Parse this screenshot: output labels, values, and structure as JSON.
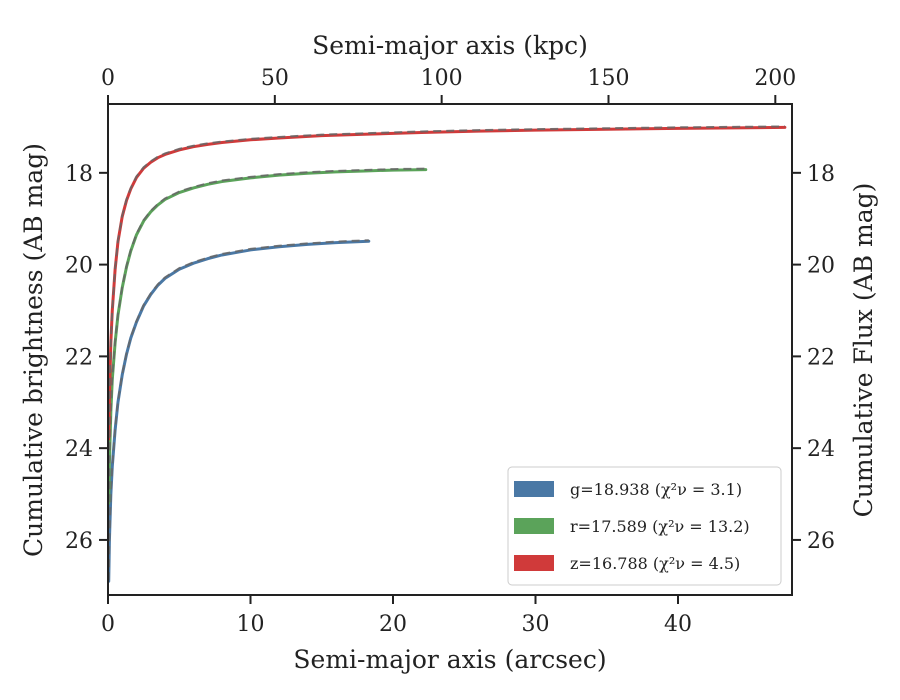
{
  "chart_data": {
    "type": "line",
    "xlabel": "Semi-major axis (arcsec)",
    "ylabel": "Cumulative brightness (AB mag)",
    "x2label": "Semi-major axis (kpc)",
    "y2label": "Cumulative Flux (AB mag)",
    "xlim": [
      0,
      48
    ],
    "ylim": [
      27.2,
      16.5
    ],
    "x2lim": [
      0,
      205
    ],
    "y_inverted": true,
    "grid": false,
    "legend_position": "lower-right",
    "xticks": [
      "0",
      "10",
      "20",
      "30",
      "40"
    ],
    "yticks": [
      "18",
      "20",
      "22",
      "24",
      "26"
    ],
    "x2ticks": [
      "0",
      "50",
      "100",
      "150",
      "200"
    ],
    "y2ticks": [
      "18",
      "20",
      "22",
      "24",
      "26"
    ],
    "series": [
      {
        "label": "g=18.938 (χ²ν = 3.1)",
        "band": "g",
        "color": "#4a78a5",
        "x": [
          0.05,
          0.1,
          0.2,
          0.3,
          0.5,
          0.7,
          1.0,
          1.3,
          1.6,
          2.0,
          2.5,
          3.0,
          3.5,
          4.0,
          5.0,
          6.0,
          7.0,
          8.0,
          10.0,
          12.0,
          14.0,
          16.0,
          18.3
        ],
        "values": [
          26.9,
          26.0,
          25.0,
          24.4,
          23.6,
          23.0,
          22.4,
          21.95,
          21.6,
          21.25,
          20.9,
          20.65,
          20.45,
          20.3,
          20.1,
          19.97,
          19.87,
          19.79,
          19.68,
          19.61,
          19.56,
          19.52,
          19.49
        ],
        "model_dashed": true
      },
      {
        "label": "r=17.589 (χ²ν = 13.2)",
        "band": "r",
        "color": "#5ba35a",
        "x": [
          0.05,
          0.1,
          0.2,
          0.3,
          0.5,
          0.7,
          1.0,
          1.3,
          1.6,
          2.0,
          2.5,
          3.0,
          3.5,
          4.0,
          5.0,
          6.0,
          7.0,
          8.0,
          10.0,
          12.0,
          14.0,
          16.0,
          18.0,
          20.0,
          22.3
        ],
        "values": [
          25.2,
          24.3,
          23.2,
          22.5,
          21.7,
          21.1,
          20.5,
          20.05,
          19.7,
          19.35,
          19.05,
          18.85,
          18.7,
          18.58,
          18.43,
          18.33,
          18.25,
          18.19,
          18.11,
          18.05,
          18.01,
          17.98,
          17.96,
          17.94,
          17.93
        ],
        "model_dashed": true
      },
      {
        "label": "z=16.788 (χ²ν = 4.5)",
        "band": "z",
        "color": "#d03a3a",
        "x": [
          0.05,
          0.1,
          0.2,
          0.3,
          0.5,
          0.7,
          1.0,
          1.3,
          1.6,
          2.0,
          2.5,
          3.0,
          3.5,
          4.0,
          5.0,
          6.0,
          7.0,
          8.0,
          10.0,
          12.0,
          15.0,
          18.0,
          22.0,
          26.0,
          30.0,
          35.0,
          40.0,
          44.0,
          47.5
        ],
        "values": [
          23.8,
          22.9,
          21.7,
          21.0,
          20.1,
          19.5,
          18.95,
          18.6,
          18.35,
          18.1,
          17.9,
          17.77,
          17.67,
          17.6,
          17.5,
          17.43,
          17.38,
          17.34,
          17.28,
          17.24,
          17.19,
          17.16,
          17.12,
          17.09,
          17.07,
          17.05,
          17.03,
          17.02,
          17.01
        ],
        "model_dashed": true
      }
    ]
  }
}
